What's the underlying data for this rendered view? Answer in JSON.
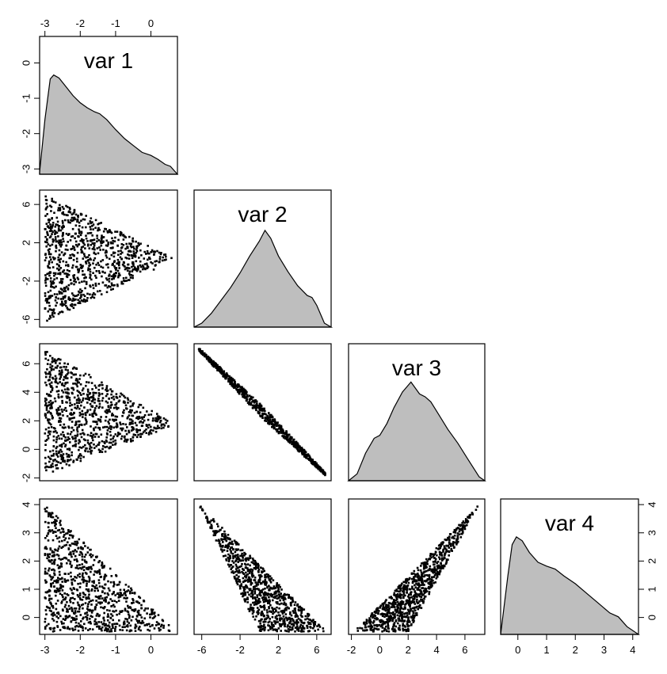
{
  "chart_data": {
    "type": "scatter",
    "variables": [
      {
        "title": "var 1",
        "ticks": [
          -3,
          -2,
          -1,
          0
        ],
        "range": [
          -3.15,
          0.75
        ],
        "density": [
          [
            -3.15,
            0.02
          ],
          [
            -3.0,
            0.55
          ],
          [
            -2.85,
            0.96
          ],
          [
            -2.75,
            1.0
          ],
          [
            -2.6,
            0.97
          ],
          [
            -2.4,
            0.88
          ],
          [
            -2.2,
            0.79
          ],
          [
            -2.0,
            0.72
          ],
          [
            -1.8,
            0.67
          ],
          [
            -1.6,
            0.63
          ],
          [
            -1.45,
            0.61
          ],
          [
            -1.25,
            0.55
          ],
          [
            -1.0,
            0.45
          ],
          [
            -0.75,
            0.36
          ],
          [
            -0.5,
            0.29
          ],
          [
            -0.25,
            0.22
          ],
          [
            0.0,
            0.19
          ],
          [
            0.2,
            0.15
          ],
          [
            0.4,
            0.1
          ],
          [
            0.55,
            0.08
          ],
          [
            0.75,
            0.0
          ]
        ]
      },
      {
        "title": "var 2",
        "ticks": [
          -6,
          -2,
          2,
          6
        ],
        "range": [
          -6.8,
          7.5
        ],
        "density": [
          [
            -6.8,
            0.0
          ],
          [
            -6.0,
            0.04
          ],
          [
            -5.0,
            0.14
          ],
          [
            -4.0,
            0.27
          ],
          [
            -3.0,
            0.4
          ],
          [
            -2.0,
            0.55
          ],
          [
            -1.0,
            0.72
          ],
          [
            0.0,
            0.87
          ],
          [
            0.6,
            0.98
          ],
          [
            1.2,
            0.9
          ],
          [
            2.0,
            0.72
          ],
          [
            3.0,
            0.56
          ],
          [
            4.0,
            0.42
          ],
          [
            5.0,
            0.32
          ],
          [
            5.5,
            0.3
          ],
          [
            6.0,
            0.22
          ],
          [
            6.8,
            0.04
          ],
          [
            7.5,
            0.0
          ]
        ]
      },
      {
        "title": "var 3",
        "ticks": [
          -2,
          0,
          2,
          4,
          6
        ],
        "range": [
          -2.2,
          7.4
        ],
        "density": [
          [
            -2.2,
            0.0
          ],
          [
            -1.6,
            0.07
          ],
          [
            -1.0,
            0.28
          ],
          [
            -0.4,
            0.43
          ],
          [
            0.0,
            0.46
          ],
          [
            0.5,
            0.58
          ],
          [
            1.0,
            0.74
          ],
          [
            1.6,
            0.9
          ],
          [
            2.2,
            1.0
          ],
          [
            2.8,
            0.88
          ],
          [
            3.2,
            0.85
          ],
          [
            3.6,
            0.8
          ],
          [
            4.2,
            0.66
          ],
          [
            4.8,
            0.52
          ],
          [
            5.5,
            0.38
          ],
          [
            6.2,
            0.22
          ],
          [
            7.0,
            0.04
          ],
          [
            7.4,
            0.0
          ]
        ]
      },
      {
        "title": "var 4",
        "ticks": [
          0,
          1,
          2,
          3,
          4
        ],
        "range": [
          -0.6,
          4.2
        ],
        "density": [
          [
            -0.6,
            0.0
          ],
          [
            -0.35,
            0.6
          ],
          [
            -0.2,
            0.92
          ],
          [
            -0.05,
            1.0
          ],
          [
            0.15,
            0.96
          ],
          [
            0.4,
            0.84
          ],
          [
            0.7,
            0.74
          ],
          [
            1.0,
            0.7
          ],
          [
            1.3,
            0.67
          ],
          [
            1.6,
            0.6
          ],
          [
            2.0,
            0.52
          ],
          [
            2.4,
            0.42
          ],
          [
            2.8,
            0.32
          ],
          [
            3.2,
            0.22
          ],
          [
            3.5,
            0.18
          ],
          [
            3.8,
            0.08
          ],
          [
            4.2,
            0.0
          ]
        ]
      }
    ],
    "scatter_panels": [
      {
        "x_var": "var 1",
        "y_var": "var 2",
        "shape": "triangle",
        "region": [
          [
            -3.0,
            -6.3
          ],
          [
            -3.0,
            7.0
          ],
          [
            0.7,
            0.3
          ]
        ],
        "n_points": 900
      },
      {
        "x_var": "var 1",
        "y_var": "var 3",
        "shape": "triangle",
        "region": [
          [
            -3.0,
            -1.8
          ],
          [
            -3.0,
            7.0
          ],
          [
            0.7,
            1.75
          ]
        ],
        "n_points": 900
      },
      {
        "x_var": "var 1",
        "y_var": "var 4",
        "shape": "triangle",
        "region": [
          [
            -3.0,
            -0.5
          ],
          [
            -3.0,
            4.0
          ],
          [
            0.7,
            -0.5
          ]
        ],
        "n_points": 900
      },
      {
        "x_var": "var 2",
        "y_var": "var 3",
        "shape": "band",
        "region": [
          [
            -6.3,
            7.0
          ],
          [
            7.0,
            -1.8
          ]
        ],
        "n_points": 700
      },
      {
        "x_var": "var 2",
        "y_var": "var 4",
        "shape": "triangle",
        "region": [
          [
            -6.3,
            4.0
          ],
          [
            0.0,
            -0.5
          ],
          [
            7.0,
            -0.5
          ]
        ],
        "n_points": 900
      },
      {
        "x_var": "var 3",
        "y_var": "var 4",
        "shape": "triangle",
        "region": [
          [
            -1.8,
            -0.5
          ],
          [
            2.0,
            -0.5
          ],
          [
            7.0,
            4.0
          ]
        ],
        "n_points": 900
      }
    ],
    "axis_labels": {
      "top": [
        "-3",
        "-2",
        "-1",
        "0"
      ],
      "left_row1": [
        "0",
        "-1",
        "-2",
        "-3"
      ],
      "left_row2": [
        "6",
        "2",
        "-2",
        "-6"
      ],
      "left_row3": [
        "6",
        "4",
        "2",
        "0",
        "-2"
      ],
      "left_row4": [
        "4",
        "3",
        "2",
        "1",
        "0"
      ],
      "right_row4": [
        "4",
        "3",
        "2",
        "1",
        "0"
      ],
      "bottom_col1": [
        "-3",
        "-2",
        "-1",
        "0"
      ],
      "bottom_col2": [
        "-6",
        "-2",
        "2",
        "6"
      ],
      "bottom_col3": [
        "-2",
        "0",
        "2",
        "4",
        "6"
      ],
      "bottom_col4": [
        "0",
        "1",
        "2",
        "3",
        "4"
      ]
    },
    "xlabel": "",
    "ylabel": "",
    "grid": false,
    "legend": "none",
    "colors": {
      "density_fill": "#bebebe",
      "points": "#000000",
      "axes": "#000000"
    }
  }
}
